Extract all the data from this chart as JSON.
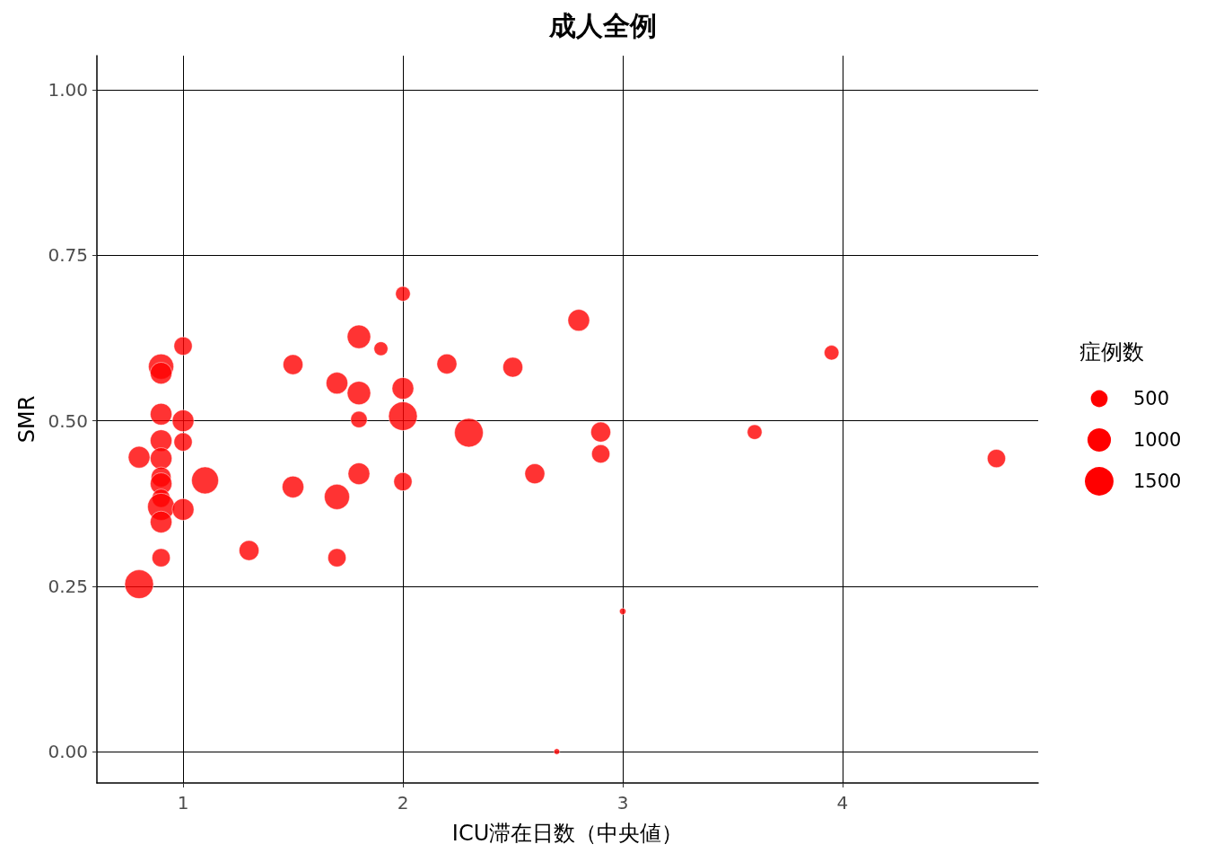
{
  "chart_data": {
    "type": "bubble",
    "title": "成人全例",
    "xlabel": "ICU滞在日数（中央値）",
    "ylabel": "SMR",
    "legend_title": "症例数",
    "x": [
      1.0,
      0.9,
      0.9,
      0.9,
      1.0,
      0.9,
      1.0,
      0.8,
      0.9,
      0.9,
      0.9,
      1.1,
      0.9,
      0.9,
      1.0,
      0.9,
      0.9,
      0.8,
      1.3,
      1.5,
      1.5,
      1.7,
      1.7,
      1.7,
      1.8,
      1.8,
      1.8,
      1.8,
      1.9,
      2.0,
      2.0,
      2.0,
      2.0,
      2.2,
      2.3,
      2.5,
      2.6,
      2.8,
      2.9,
      2.9,
      2.7,
      3.0,
      3.6,
      3.95,
      4.7
    ],
    "series": [
      {
        "color": "#ff0000",
        "values": [
          0.613,
          0.582,
          0.572,
          0.51,
          0.5,
          0.47,
          0.468,
          0.445,
          0.443,
          0.415,
          0.405,
          0.41,
          0.383,
          0.37,
          0.366,
          0.347,
          0.293,
          0.253,
          0.304,
          0.585,
          0.4,
          0.557,
          0.385,
          0.293,
          0.627,
          0.542,
          0.502,
          0.42,
          0.609,
          0.692,
          0.549,
          0.507,
          0.408,
          0.586,
          0.482,
          0.581,
          0.42,
          0.652,
          0.483,
          0.45,
          0.0,
          0.212,
          0.483,
          0.603,
          0.443
        ],
        "sizes": [
          590,
          1150,
          845,
          845,
          845,
          845,
          590,
          845,
          845,
          710,
          845,
          1320,
          590,
          1320,
          845,
          845,
          590,
          1500,
          710,
          710,
          845,
          845,
          1150,
          590,
          990,
          990,
          475,
          845,
          330,
          375,
          845,
          1500,
          590,
          710,
          1500,
          710,
          710,
          845,
          710,
          590,
          40,
          55,
          375,
          375,
          590
        ]
      }
    ],
    "size_legend": [
      500,
      1000,
      1500
    ],
    "xlim": [
      0.608,
      4.89
    ],
    "xticks": [
      1,
      2,
      3,
      4
    ],
    "ylim": [
      -0.0475,
      1.052
    ],
    "yticks": [
      {
        "value": 0,
        "label": "0.00"
      },
      {
        "value": 0.25,
        "label": "0.25"
      },
      {
        "value": 0.5,
        "label": "0.50"
      },
      {
        "value": 0.75,
        "label": "0.75"
      },
      {
        "value": 1,
        "label": "1.00"
      }
    ],
    "grid": true,
    "marker": "circle"
  }
}
